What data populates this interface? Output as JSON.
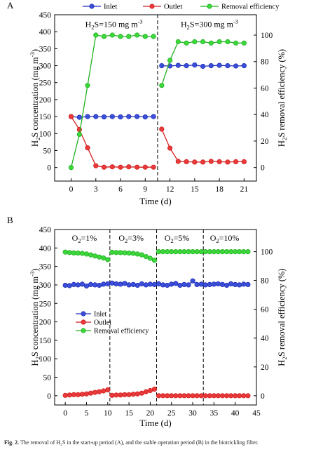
{
  "figure": {
    "caption_label": "Fig. 2.",
    "caption_text": "The removal of H₂S in the start-up period (A), and the stable operation period (B) in the biotrickling filter."
  },
  "colors": {
    "inlet": "#1f2fb8",
    "outlet": "#d21e1e",
    "removal": "#22b022"
  },
  "chart_data": [
    {
      "panel_label": "A",
      "type": "line",
      "xlabel": "Time (d)",
      "ylabel": "H2S concentration (mg m-3)",
      "y2label": "H2S removal efficiency (%)",
      "xlim": [
        -2,
        22.5
      ],
      "ylim": [
        -40,
        450
      ],
      "y2lim": [
        -10.256,
        115.385
      ],
      "xticks": [
        0,
        3,
        6,
        9,
        12,
        15,
        18,
        21
      ],
      "yticks": [
        0,
        50,
        100,
        150,
        200,
        250,
        300,
        350,
        400,
        450
      ],
      "y2ticks": [
        0,
        20,
        40,
        60,
        80,
        100
      ],
      "legend": {
        "placement": "top",
        "entries": [
          "Inlet",
          "Outlet",
          "Removal efficiency"
        ]
      },
      "dividers": [
        10.5
      ],
      "annotations": [
        {
          "text": "H2S=150 mg m-3",
          "x": 5.2,
          "y": 414
        },
        {
          "text": "H2S=300 mg m-3",
          "x": 16.8,
          "y": 414
        }
      ],
      "series": [
        {
          "name": "Inlet",
          "axis": "left",
          "segments": [
            {
              "x": [
                0,
                1,
                2,
                3,
                4,
                5,
                6,
                7,
                8,
                9,
                10
              ],
              "y": [
                150,
                148,
                150,
                150,
                149,
                150,
                149,
                150,
                150,
                149,
                150
              ]
            },
            {
              "x": [
                11,
                12,
                13,
                14,
                15,
                16,
                17,
                18,
                19,
                20,
                21
              ],
              "y": [
                300,
                299,
                301,
                300,
                302,
                298,
                300,
                301,
                300,
                299,
                300
              ]
            }
          ]
        },
        {
          "name": "Outlet",
          "axis": "left",
          "segments": [
            {
              "x": [
                0,
                1,
                2,
                3,
                4,
                5,
                6,
                7,
                8,
                9,
                10
              ],
              "y": [
                150,
                112,
                58,
                5,
                1,
                2,
                1,
                2,
                1,
                1,
                1
              ]
            },
            {
              "x": [
                11,
                12,
                13,
                14,
                15,
                16,
                17,
                18,
                19,
                20,
                21
              ],
              "y": [
                113,
                57,
                18,
                17,
                16,
                16,
                18,
                17,
                16,
                17,
                17
              ]
            }
          ]
        },
        {
          "name": "Removal efficiency",
          "axis": "right",
          "segments": [
            {
              "x": [
                0,
                1,
                2,
                3,
                4,
                5,
                6,
                7,
                8,
                9,
                10
              ],
              "y": [
                0,
                25,
                62,
                100,
                99,
                100,
                99,
                99,
                100,
                99,
                99
              ]
            },
            {
              "x": [
                11,
                12,
                13,
                14,
                15,
                16,
                17,
                18,
                19,
                20,
                21
              ],
              "y": [
                62,
                81,
                95,
                94,
                95,
                95,
                94,
                95,
                95,
                94,
                94
              ]
            }
          ]
        }
      ]
    },
    {
      "panel_label": "B",
      "type": "line",
      "xlabel": "Time (d)",
      "ylabel": "H2S concentration (mg m-3)",
      "y2label": "H2S removal efficiency (%)",
      "xlim": [
        -2.5,
        45
      ],
      "ylim": [
        -25,
        450
      ],
      "y2lim": [
        -6.41,
        115.385
      ],
      "xticks": [
        0,
        5,
        10,
        15,
        20,
        25,
        30,
        35,
        40,
        45
      ],
      "yticks": [
        0,
        50,
        100,
        150,
        200,
        250,
        300,
        350,
        400,
        450
      ],
      "y2ticks": [
        0,
        20,
        40,
        60,
        80,
        100
      ],
      "legend": {
        "placement": "center-left",
        "entries": [
          "Inlet",
          "Outlet",
          "Removal efficiency"
        ]
      },
      "dividers": [
        10.5,
        21.5,
        32.5
      ],
      "annotations": [
        {
          "text": "O2=1%",
          "x": 4.5,
          "y": 420
        },
        {
          "text": "O2=3%",
          "x": 15.5,
          "y": 420
        },
        {
          "text": "O2=5%",
          "x": 26.3,
          "y": 420
        },
        {
          "text": "O2=10%",
          "x": 37.5,
          "y": 420
        }
      ],
      "series": [
        {
          "name": "Inlet",
          "axis": "left",
          "segments": [
            {
              "x": [
                0,
                1,
                2,
                3,
                4,
                5,
                6,
                7,
                8,
                9,
                10,
                11,
                12,
                13,
                14,
                15,
                16,
                17,
                18,
                19,
                20,
                21,
                22,
                23,
                24,
                25,
                26,
                27,
                28,
                29,
                30,
                31,
                32,
                33,
                34,
                35,
                36,
                37,
                38,
                39,
                40,
                41,
                42,
                43
              ],
              "y": [
                299,
                298,
                301,
                300,
                302,
                297,
                301,
                300,
                299,
                302,
                303,
                305,
                303,
                302,
                304,
                300,
                301,
                299,
                303,
                300,
                302,
                301,
                303,
                300,
                299,
                302,
                304,
                299,
                301,
                300,
                311,
                301,
                302,
                300,
                301,
                302,
                303,
                301,
                299,
                303,
                301,
                300,
                302,
                301
              ]
            }
          ]
        },
        {
          "name": "Outlet",
          "axis": "left",
          "segments": [
            {
              "x": [
                0,
                1,
                2,
                3,
                4,
                5,
                6,
                7,
                8,
                9,
                10
              ],
              "y": [
                1,
                2,
                3,
                3,
                4,
                5,
                7,
                9,
                11,
                13,
                16
              ]
            },
            {
              "x": [
                11,
                12,
                13,
                14,
                15,
                16,
                17,
                18,
                19,
                20,
                21
              ],
              "y": [
                1,
                2,
                2,
                3,
                3,
                4,
                5,
                7,
                11,
                14,
                18
              ]
            },
            {
              "x": [
                22,
                23,
                24,
                25,
                26,
                27,
                28,
                29,
                30,
                31,
                32,
                33,
                34,
                35,
                36,
                37,
                38,
                39,
                40,
                41,
                42,
                43
              ],
              "y": [
                0,
                0,
                0,
                0,
                0,
                0,
                0,
                0,
                0,
                0,
                0,
                0,
                0,
                0,
                0,
                0,
                0,
                0,
                0,
                0,
                0,
                0
              ]
            }
          ]
        },
        {
          "name": "Removal efficiency",
          "axis": "right",
          "segments": [
            {
              "x": [
                0,
                1,
                2,
                3,
                4,
                5,
                6,
                7,
                8,
                9,
                10
              ],
              "y": [
                99.7,
                99.4,
                99.1,
                99.0,
                98.8,
                98.4,
                97.8,
                97.0,
                96.3,
                95.6,
                94.5
              ]
            },
            {
              "x": [
                11,
                12,
                13,
                14,
                15,
                16,
                17,
                18,
                19,
                20,
                21
              ],
              "y": [
                99.6,
                99.4,
                99.3,
                99.2,
                99.0,
                98.8,
                98.4,
                97.8,
                96.6,
                95.4,
                94.0
              ]
            },
            {
              "x": [
                22,
                23,
                24,
                25,
                26,
                27,
                28,
                29,
                30,
                31,
                32,
                33,
                34,
                35,
                36,
                37,
                38,
                39,
                40,
                41,
                42,
                43
              ],
              "y": [
                100,
                100,
                100,
                100,
                100,
                100,
                100,
                100,
                100,
                100,
                100,
                100,
                100,
                100,
                100,
                100,
                100,
                100,
                100,
                100,
                100,
                100
              ]
            }
          ]
        }
      ]
    }
  ]
}
